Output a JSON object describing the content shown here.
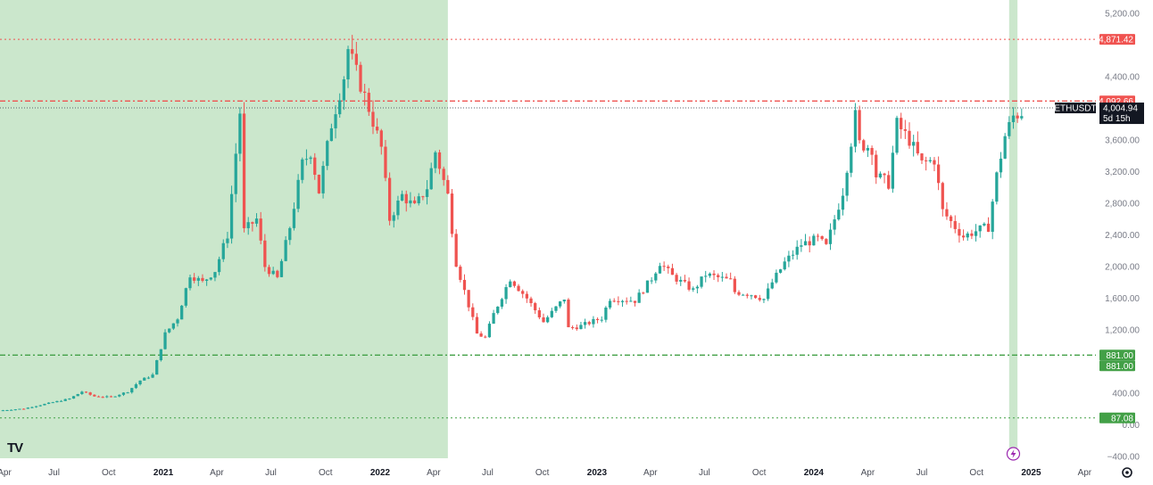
{
  "chart_data": {
    "type": "candlestick",
    "symbol": "ETHUSDT",
    "timeframe": "1W",
    "price_axis": {
      "ylim": [
        -400,
        5200
      ],
      "ticks": [
        5200,
        4400,
        3600,
        3200,
        2800,
        2400,
        2000,
        1600,
        1200,
        400,
        0,
        -400
      ],
      "tick_labels": [
        "5,200.00",
        "4,400.00",
        "3,600.00",
        "3,200.00",
        "2,800.00",
        "2,400.00",
        "2,000.00",
        "1,600.00",
        "1,200.00",
        "400.00",
        "0.00",
        "−400.00"
      ]
    },
    "time_axis": {
      "range": [
        "2020-04-01",
        "2025-04-20"
      ],
      "ticks": [
        {
          "date": "2020-04-01",
          "label": "Apr",
          "year": false
        },
        {
          "date": "2020-07-01",
          "label": "Jul",
          "year": false
        },
        {
          "date": "2020-10-01",
          "label": "Oct",
          "year": false
        },
        {
          "date": "2021-01-01",
          "label": "2021",
          "year": true
        },
        {
          "date": "2021-04-01",
          "label": "Apr",
          "year": false
        },
        {
          "date": "2021-07-01",
          "label": "Jul",
          "year": false
        },
        {
          "date": "2021-10-01",
          "label": "Oct",
          "year": false
        },
        {
          "date": "2022-01-01",
          "label": "2022",
          "year": true
        },
        {
          "date": "2022-04-01",
          "label": "Apr",
          "year": false
        },
        {
          "date": "2022-07-01",
          "label": "Jul",
          "year": false
        },
        {
          "date": "2022-10-01",
          "label": "Oct",
          "year": false
        },
        {
          "date": "2023-01-01",
          "label": "2023",
          "year": true
        },
        {
          "date": "2023-04-01",
          "label": "Apr",
          "year": false
        },
        {
          "date": "2023-07-01",
          "label": "Jul",
          "year": false
        },
        {
          "date": "2023-10-01",
          "label": "Oct",
          "year": false
        },
        {
          "date": "2024-01-01",
          "label": "2024",
          "year": true
        },
        {
          "date": "2024-04-01",
          "label": "Apr",
          "year": false
        },
        {
          "date": "2024-07-01",
          "label": "Jul",
          "year": false
        },
        {
          "date": "2024-10-01",
          "label": "Oct",
          "year": false
        },
        {
          "date": "2025-01-01",
          "label": "2025",
          "year": true
        },
        {
          "date": "2025-04-01",
          "label": "Apr",
          "year": false
        }
      ]
    },
    "shaded_regions": [
      {
        "start": "2020-04-01",
        "end": "2022-04-25",
        "color": "#c8e6c9"
      },
      {
        "start": "2024-11-25",
        "end": "2024-12-09",
        "color": "#c8e6c9"
      }
    ],
    "horizontal_levels": [
      {
        "price": 4871.42,
        "label": "4,871.42",
        "color": "#f05350",
        "style": "dotted"
      },
      {
        "price": 4092.66,
        "label": "4,092.66",
        "color": "#f05350",
        "style": "dash-dot"
      },
      {
        "price": 4092.66,
        "label": "4,092.66",
        "color": "#f05350",
        "style": "dash-dot"
      },
      {
        "price": 881.0,
        "label": "881.00",
        "color": "#43a047",
        "style": "dash-dot"
      },
      {
        "price": 881.0,
        "label": "881.00",
        "color": "#43a047",
        "style": "dash-dot"
      },
      {
        "price": 87.08,
        "label": "87.08",
        "color": "#43a047",
        "style": "dotted"
      }
    ],
    "last_price": {
      "price": 4004.94,
      "label": "4,004.94",
      "countdown": "5d 15h",
      "symbol_label": "ETHUSDT",
      "color": "#131722"
    },
    "anchor_points": [
      [
        "2020-03-30",
        180
      ],
      [
        "2020-05-11",
        205
      ],
      [
        "2020-06-01",
        240
      ],
      [
        "2020-07-27",
        330
      ],
      [
        "2020-08-17",
        420
      ],
      [
        "2020-09-07",
        360
      ],
      [
        "2020-10-05",
        350
      ],
      [
        "2020-11-02",
        420
      ],
      [
        "2020-11-23",
        560
      ],
      [
        "2020-12-14",
        630
      ],
      [
        "2021-01-04",
        1150
      ],
      [
        "2021-01-25",
        1350
      ],
      [
        "2021-02-15",
        1900
      ],
      [
        "2021-03-08",
        1800
      ],
      [
        "2021-03-29",
        1950
      ],
      [
        "2021-04-19",
        2400
      ],
      [
        "2021-05-10",
        3950
      ],
      [
        "2021-05-17",
        2450
      ],
      [
        "2021-06-07",
        2600
      ],
      [
        "2021-06-21",
        2000
      ],
      [
        "2021-07-12",
        1850
      ],
      [
        "2021-08-02",
        2500
      ],
      [
        "2021-08-23",
        3300
      ],
      [
        "2021-09-06",
        3450
      ],
      [
        "2021-09-20",
        2950
      ],
      [
        "2021-10-11",
        3800
      ],
      [
        "2021-11-01",
        4400
      ],
      [
        "2021-11-08",
        4750
      ],
      [
        "2021-11-29",
        4300
      ],
      [
        "2021-12-13",
        4000
      ],
      [
        "2022-01-03",
        3500
      ],
      [
        "2022-01-17",
        2600
      ],
      [
        "2022-02-07",
        2900
      ],
      [
        "2022-02-28",
        2750
      ],
      [
        "2022-03-21",
        3000
      ],
      [
        "2022-04-04",
        3450
      ],
      [
        "2022-04-25",
        2900
      ],
      [
        "2022-05-09",
        2050
      ],
      [
        "2022-06-13",
        1150
      ],
      [
        "2022-06-27",
        1100
      ],
      [
        "2022-07-11",
        1400
      ],
      [
        "2022-08-08",
        1850
      ],
      [
        "2022-09-05",
        1600
      ],
      [
        "2022-10-03",
        1300
      ],
      [
        "2022-11-07",
        1600
      ],
      [
        "2022-11-14",
        1220
      ],
      [
        "2022-12-05",
        1250
      ],
      [
        "2023-01-09",
        1350
      ],
      [
        "2023-01-23",
        1600
      ],
      [
        "2023-03-06",
        1570
      ],
      [
        "2023-04-03",
        1850
      ],
      [
        "2023-04-17",
        2050
      ],
      [
        "2023-05-08",
        1880
      ],
      [
        "2023-06-12",
        1700
      ],
      [
        "2023-07-03",
        1900
      ],
      [
        "2023-08-14",
        1820
      ],
      [
        "2023-08-21",
        1680
      ],
      [
        "2023-09-18",
        1650
      ],
      [
        "2023-10-09",
        1590
      ],
      [
        "2023-10-23",
        1800
      ],
      [
        "2023-11-13",
        2050
      ],
      [
        "2023-12-11",
        2280
      ],
      [
        "2024-01-08",
        2350
      ],
      [
        "2024-01-22",
        2250
      ],
      [
        "2024-02-19",
        2950
      ],
      [
        "2024-03-11",
        3900
      ],
      [
        "2024-03-18",
        3550
      ],
      [
        "2024-04-08",
        3500
      ],
      [
        "2024-04-15",
        3150
      ],
      [
        "2024-05-06",
        3050
      ],
      [
        "2024-05-20",
        3800
      ],
      [
        "2024-06-10",
        3600
      ],
      [
        "2024-07-01",
        3300
      ],
      [
        "2024-07-22",
        3350
      ],
      [
        "2024-08-05",
        2700
      ],
      [
        "2024-08-26",
        2500
      ],
      [
        "2024-09-09",
        2380
      ],
      [
        "2024-09-30",
        2450
      ],
      [
        "2024-10-21",
        2500
      ],
      [
        "2024-11-04",
        3150
      ],
      [
        "2024-11-18",
        3650
      ],
      [
        "2024-12-02",
        3900
      ],
      [
        "2024-12-16",
        3950
      ]
    ],
    "title": "",
    "grid": false,
    "legend": "none"
  },
  "branding": {
    "logo_text": "TV"
  },
  "toolbar": {
    "settings_icon": "gear-icon",
    "bolt_icon": "lightning-icon"
  }
}
